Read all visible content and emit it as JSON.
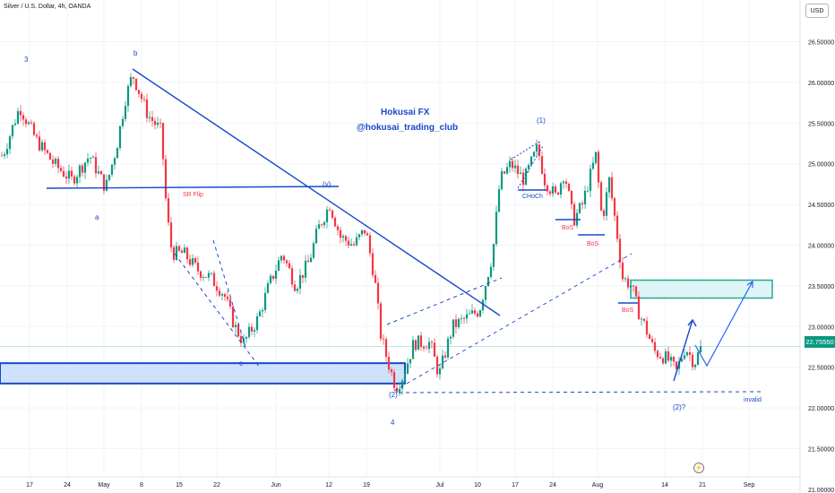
{
  "header": {
    "symbol_line": "Silver / U.S. Dollar, 4h, OANDA",
    "currency_label": "USD",
    "current_price": "22.75550"
  },
  "icons": {
    "replay": "lightning-icon"
  },
  "colors": {
    "up": "#089981",
    "down": "#f23645",
    "annotation": "#1848cc",
    "sr_flip": "#f23645",
    "zone_fill": "#cfe2fb",
    "zone2_fill": "#dff4f4",
    "zone2_border": "#22ab94"
  },
  "chart_data": {
    "type": "candlestick",
    "title": "Silver / U.S. Dollar, 4h, OANDA",
    "ylim": [
      21.0,
      26.9
    ],
    "y_ticks": [
      "26.50000",
      "26.00000",
      "25.50000",
      "25.00000",
      "24.50000",
      "24.00000",
      "23.50000",
      "23.00000",
      "22.50000",
      "22.00000",
      "21.50000",
      "21.00000"
    ],
    "x_ticks": [
      "17",
      "24",
      "May",
      "8",
      "15",
      "22",
      "Jun",
      "12",
      "19",
      "Jul",
      "10",
      "17",
      "24",
      "Aug",
      "14",
      "21",
      "Sep"
    ],
    "last_price": 22.7555,
    "price_path": [
      [
        "Apr 17",
        25.1
      ],
      [
        "Apr 19",
        25.7
      ],
      [
        "Apr 21",
        25.3
      ],
      [
        "Apr 24",
        25.0
      ],
      [
        "Apr 26",
        24.8
      ],
      [
        "Apr 28",
        25.1
      ],
      [
        "May 1",
        24.7
      ],
      [
        "May 2",
        25.2
      ],
      [
        "May 4",
        25.8
      ],
      [
        "May 5",
        26.1
      ],
      [
        "May 8",
        25.6
      ],
      [
        "May 10",
        25.4
      ],
      [
        "May 11",
        24.4
      ],
      [
        "May 12",
        23.9
      ],
      [
        "May 15",
        23.9
      ],
      [
        "May 17",
        23.7
      ],
      [
        "May 19",
        23.6
      ],
      [
        "May 22",
        23.4
      ],
      [
        "May 24",
        23.0
      ],
      [
        "May 26",
        22.8
      ],
      [
        "May 29",
        23.1
      ],
      [
        "May 31",
        23.5
      ],
      [
        "Jun 2",
        23.9
      ],
      [
        "Jun 5",
        23.5
      ],
      [
        "Jun 7",
        23.8
      ],
      [
        "Jun 9",
        24.2
      ],
      [
        "Jun 12",
        24.5
      ],
      [
        "Jun 14",
        24.1
      ],
      [
        "Jun 16",
        24.0
      ],
      [
        "Jun 19",
        24.2
      ],
      [
        "Jun 21",
        23.6
      ],
      [
        "Jun 22",
        22.9
      ],
      [
        "Jun 23",
        22.6
      ],
      [
        "Jun 26",
        22.25
      ],
      [
        "Jun 27",
        22.4
      ],
      [
        "Jun 29",
        22.8
      ],
      [
        "Jul 3",
        22.8
      ],
      [
        "Jul 5",
        22.4
      ],
      [
        "Jul 7",
        23.0
      ],
      [
        "Jul 10",
        23.1
      ],
      [
        "Jul 11",
        23.2
      ],
      [
        "Jul 12",
        23.9
      ],
      [
        "Jul 13",
        24.8
      ],
      [
        "Jul 14",
        25.0
      ],
      [
        "Jul 17",
        24.8
      ],
      [
        "Jul 20",
        25.2
      ],
      [
        "Jul 21",
        24.8
      ],
      [
        "Jul 24",
        24.6
      ],
      [
        "Jul 26",
        24.9
      ],
      [
        "Jul 27",
        24.3
      ],
      [
        "Jul 28",
        24.5
      ],
      [
        "Jul 31",
        25.1
      ],
      [
        "Aug 1",
        24.3
      ],
      [
        "Aug 2",
        24.8
      ],
      [
        "Aug 3",
        24.2
      ],
      [
        "Aug 4",
        23.6
      ],
      [
        "Aug 7",
        23.5
      ],
      [
        "Aug 8",
        23.2
      ],
      [
        "Aug 9",
        23.0
      ],
      [
        "Aug 10",
        22.7
      ],
      [
        "Aug 14",
        22.6
      ],
      [
        "Aug 15",
        22.45
      ],
      [
        "Aug 17",
        22.75
      ],
      [
        "Aug 18",
        22.55
      ],
      [
        "Aug 19",
        22.76
      ]
    ],
    "annotations": {
      "branding": [
        "Hokusai FX",
        "@hokusai_trading_club"
      ],
      "wave_labels": [
        "3",
        "b",
        "a",
        "c",
        "(v)",
        "(1)",
        "(2)",
        "4",
        "(2)?"
      ],
      "structure_labels": [
        "SR Flip",
        "CHoCh",
        "BoS",
        "BoS",
        "BoS"
      ],
      "invalid_label": "invalid",
      "invalid_level": 22.12,
      "sr_flip_level": 24.67,
      "demand_zone": [
        22.3,
        22.55
      ],
      "target_zone": [
        23.35,
        23.57
      ]
    },
    "grid": true,
    "legend": "none"
  }
}
